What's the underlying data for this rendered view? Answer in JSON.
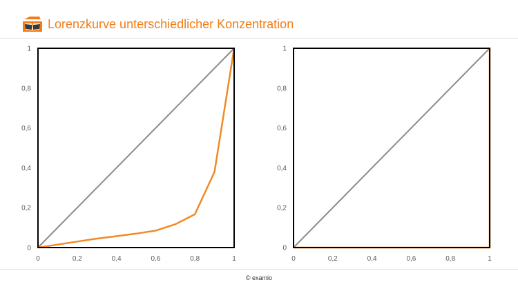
{
  "header": {
    "title": "Lorenzkurve unterschiedlicher Konzentration",
    "logo_icon": "open-book-logo-icon"
  },
  "footer": {
    "copyright": "© examio"
  },
  "colors": {
    "accent": "#f07d16",
    "curve": "#f08a24",
    "diagonal": "#8c8c8c",
    "frame": "#000000",
    "tick_text": "#595959"
  },
  "chart_data": [
    {
      "type": "line",
      "title": "",
      "xlabel": "",
      "ylabel": "",
      "xlim": [
        0,
        1
      ],
      "ylim": [
        0,
        1
      ],
      "xticks": [
        "0",
        "0,2",
        "0,4",
        "0,6",
        "0,8",
        "1"
      ],
      "yticks": [
        "0",
        "0,2",
        "0,4",
        "0,6",
        "0,8",
        "1"
      ],
      "grid": false,
      "legend": "none",
      "series": [
        {
          "x": [
            0,
            1
          ],
          "y": [
            0,
            1
          ],
          "color": "#8c8c8c"
        },
        {
          "x": [
            0,
            0.1,
            0.2,
            0.3,
            0.4,
            0.5,
            0.6,
            0.7,
            0.8,
            0.9,
            1
          ],
          "y": [
            0,
            0.015,
            0.03,
            0.045,
            0.057,
            0.07,
            0.085,
            0.117,
            0.167,
            0.38,
            1
          ],
          "color": "#f08a24"
        }
      ]
    },
    {
      "type": "line",
      "title": "",
      "xlabel": "",
      "ylabel": "",
      "xlim": [
        0,
        1
      ],
      "ylim": [
        0,
        1
      ],
      "xticks": [
        "0",
        "0,2",
        "0,4",
        "0,6",
        "0,8",
        "1"
      ],
      "yticks": [
        "0",
        "0,2",
        "0,4",
        "0,6",
        "0,8",
        "1"
      ],
      "grid": false,
      "legend": "none",
      "series": [
        {
          "x": [
            0,
            1
          ],
          "y": [
            0,
            1
          ],
          "color": "#8c8c8c"
        },
        {
          "x": [
            0,
            1,
            1
          ],
          "y": [
            0,
            0,
            1
          ],
          "color": "#f08a24"
        }
      ]
    }
  ]
}
